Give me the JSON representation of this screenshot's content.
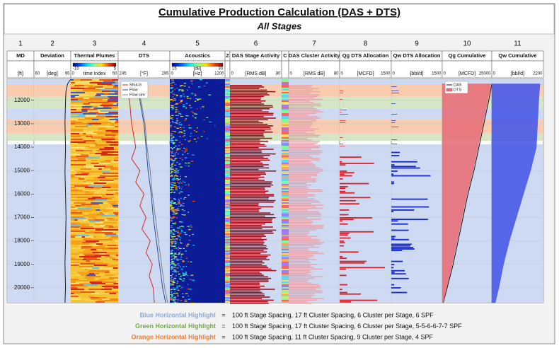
{
  "chart_data": {
    "type": "well-log",
    "title": "Cumulative Production Calculation (DAS + DTS)",
    "subtitle": "All Stages",
    "ylim": [
      11100,
      20640
    ],
    "yticks": [
      12000,
      13000,
      14000,
      15000,
      16000,
      17000,
      18000,
      19000,
      20000
    ],
    "grid": true,
    "highlights": [
      {
        "color": "#c9d6ef",
        "ylim": [
          11100,
          11310
        ]
      },
      {
        "color": "#f9c7a6",
        "ylim": [
          11310,
          11850
        ]
      },
      {
        "color": "#cfe3bf",
        "ylim": [
          11850,
          12360
        ]
      },
      {
        "color": "#c9d6ef",
        "ylim": [
          12360,
          12810
        ]
      },
      {
        "color": "#f9c7a6",
        "ylim": [
          12810,
          13420
        ]
      },
      {
        "color": "#cfe3bf",
        "ylim": [
          13420,
          13730
        ]
      },
      {
        "color": "#c9d6ef",
        "ylim": [
          13880,
          20640
        ]
      }
    ],
    "tracks": [
      {
        "number": 1,
        "name": "MD",
        "unit": "[ft]",
        "kind": "depth"
      },
      {
        "number": 2,
        "name": "Deviation",
        "unit": "[deg]",
        "xlim": [
          60,
          95
        ],
        "kind": "curve",
        "series": [
          {
            "color": "#1a1a1a",
            "depth": [
              11100,
              11300,
              11600,
              12000,
              13000,
              14000,
              15000,
              16000,
              17000,
              18000,
              19000,
              20000,
              20640
            ],
            "values": [
              95,
              92,
              90.5,
              90,
              89.5,
              90,
              89.5,
              90,
              90.5,
              90,
              89.5,
              90,
              89.5
            ]
          }
        ]
      },
      {
        "number": 3,
        "name": "Thermal Plumes",
        "unit": "time index",
        "xlim": [
          0,
          50
        ],
        "colorbar": [
          -10,
          5
        ],
        "kind": "thermal"
      },
      {
        "number": 4,
        "name": "DTS",
        "unit": "[°F]",
        "xlim": [
          245,
          295
        ],
        "kind": "curve",
        "legend": true,
        "series": [
          {
            "name": "Shut-in",
            "color": "#d62728",
            "depth": [
              11300,
              12000,
              13000,
              14000,
              14500,
              15000,
              15500,
              16000,
              16500,
              17000,
              17500,
              18000,
              18500,
              19000,
              19500,
              20000,
              20640
            ],
            "values": [
              252,
              256,
              258,
              262,
              258,
              266,
              262,
              270,
              266,
              272,
              268,
              276,
              272,
              278,
              275,
              279,
              280
            ]
          },
          {
            "name": "Flow",
            "color": "#1f4e9a",
            "depth": [
              11300,
              12000,
              13000,
              14000,
              15000,
              16000,
              17000,
              18000,
              19000,
              20000,
              20640
            ],
            "values": [
              262,
              266,
              270,
              272,
              274,
              277,
              279,
              282,
              285,
              288,
              291
            ]
          },
          {
            "name": "Flow sim",
            "color": "#7f7f7f",
            "depth": [
              11300,
              12000,
              13000,
              14000,
              15000,
              16000,
              17000,
              18000,
              19000,
              20000,
              20640
            ],
            "values": [
              263,
              267,
              271,
              273,
              276,
              278,
              281,
              284,
              287,
              290,
              293
            ]
          }
        ]
      },
      {
        "number": 5,
        "name": "Acoustics",
        "unit": "[Hz]",
        "xlim": [
          0,
          1200
        ],
        "colorbar": [
          15,
          30
        ],
        "colorbar_unit": "[dB]",
        "kind": "acoustic"
      },
      {
        "name": "Z",
        "kind": "stripes"
      },
      {
        "number": 6,
        "name": "DAS Stage Activity",
        "unit": "[RMS dB]",
        "xlim": [
          0,
          80
        ],
        "kind": "stage",
        "color": "#a31422"
      },
      {
        "name": "C",
        "kind": "stripes"
      },
      {
        "number": 7,
        "name": "DAS Cluster Activity",
        "unit": "[RMS dB]",
        "xlim": [
          0,
          80
        ],
        "kind": "cluster",
        "color": "#e8a3ad"
      },
      {
        "number": 8,
        "name": "Qg DTS Allocation",
        "unit": "[MCFD]",
        "xlim": [
          0,
          1500
        ],
        "kind": "alloc",
        "color": "#d9202c"
      },
      {
        "number": 9,
        "name": "Qw DTS Allocation",
        "unit": "[bbl/d]",
        "xlim": [
          0,
          1500
        ],
        "kind": "alloc",
        "color": "#1428d8"
      },
      {
        "number": 10,
        "name": "Qg Cumulative",
        "unit": "[MCFD]",
        "xlim": [
          0,
          25000
        ],
        "kind": "cumulative",
        "legend": true,
        "series": [
          {
            "name": "DAS",
            "color": "#111111",
            "style": "line",
            "depth": [
              11300,
              12000,
              13000,
              14000,
              15000,
              16000,
              17000,
              18000,
              19000,
              20000,
              20640
            ],
            "values": [
              25000,
              23500,
              21000,
              18500,
              16000,
              13000,
              10500,
              8000,
              5500,
              2500,
              500
            ]
          },
          {
            "name": "DTS",
            "color": "#e8707a",
            "style": "area",
            "depth": [
              11300,
              12000,
              13000,
              14000,
              15000,
              16000,
              17000,
              18000,
              19000,
              20000,
              20640
            ],
            "values": [
              24500,
              23000,
              20500,
              18000,
              15500,
              12500,
              10000,
              7500,
              5000,
              2200,
              400
            ]
          }
        ]
      },
      {
        "number": 11,
        "name": "Qw Cumulative",
        "unit": "[bbl/d]",
        "xlim": [
          0,
          2200
        ],
        "kind": "cumulative",
        "series": [
          {
            "color": "#4a5ae8",
            "style": "area",
            "depth": [
              11300,
              12000,
              13000,
              14000,
              15000,
              16000,
              17000,
              18000,
              19000,
              20000,
              20640
            ],
            "values": [
              2050,
              2000,
              1950,
              1900,
              1650,
              1350,
              1050,
              750,
              500,
              300,
              150
            ]
          }
        ]
      }
    ],
    "notes": {
      "separator": "=",
      "lines": [
        {
          "label": "Blue Horizontal Highlight",
          "color": "#8eaadb",
          "text": "100 ft Stage Spacing, 17 ft Cluster Spacing, 6 Cluster per Stage, 6 SPF"
        },
        {
          "label": "Green Horizontal Highlight",
          "color": "#70ad47",
          "text": "100 ft Stage Spacing, 17 ft Cluster Spacing, 6 Cluster per Stage, 5-5-6-6-7-7 SPF"
        },
        {
          "label": "Orange Horizontal Highlight",
          "color": "#ed7d31",
          "text": "100 ft Stage Spacing, 11 ft Cluster Spacing, 9 Cluster per Stage, 4 SPF"
        }
      ]
    }
  }
}
